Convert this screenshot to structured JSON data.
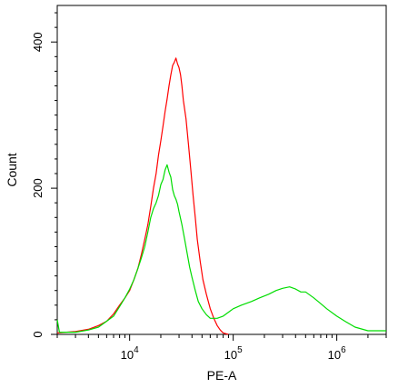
{
  "chart_data": {
    "type": "line",
    "title": "",
    "xlabel": "PE-A",
    "ylabel": "Count",
    "x_scale": "log",
    "xlim": [
      2000,
      3000000
    ],
    "ylim": [
      0,
      450
    ],
    "grid": false,
    "legend": "none",
    "x_ticks": [
      {
        "value": 10000,
        "base": "10",
        "exp": "4"
      },
      {
        "value": 100000,
        "base": "10",
        "exp": "5"
      },
      {
        "value": 1000000,
        "base": "10",
        "exp": "6"
      }
    ],
    "y_ticks": [
      {
        "value": 0,
        "label": "0"
      },
      {
        "value": 200,
        "label": "200"
      },
      {
        "value": 400,
        "label": "400"
      }
    ],
    "series": [
      {
        "color": "#ff0000",
        "points": [
          [
            2000,
            2
          ],
          [
            3000,
            4
          ],
          [
            4000,
            7
          ],
          [
            5000,
            12
          ],
          [
            6000,
            18
          ],
          [
            7000,
            28
          ],
          [
            8000,
            40
          ],
          [
            9000,
            50
          ],
          [
            10000,
            60
          ],
          [
            11000,
            75
          ],
          [
            12000,
            90
          ],
          [
            13000,
            110
          ],
          [
            14000,
            130
          ],
          [
            15000,
            150
          ],
          [
            16000,
            175
          ],
          [
            17000,
            200
          ],
          [
            18000,
            220
          ],
          [
            19000,
            245
          ],
          [
            20000,
            265
          ],
          [
            21000,
            285
          ],
          [
            22000,
            305
          ],
          [
            23000,
            322
          ],
          [
            24000,
            340
          ],
          [
            25000,
            355
          ],
          [
            26000,
            368
          ],
          [
            27000,
            372
          ],
          [
            28000,
            378
          ],
          [
            29000,
            370
          ],
          [
            30000,
            365
          ],
          [
            31000,
            355
          ],
          [
            32000,
            340
          ],
          [
            33000,
            320
          ],
          [
            35000,
            295
          ],
          [
            37000,
            260
          ],
          [
            39000,
            225
          ],
          [
            41000,
            190
          ],
          [
            43000,
            160
          ],
          [
            45000,
            130
          ],
          [
            48000,
            100
          ],
          [
            51000,
            75
          ],
          [
            55000,
            55
          ],
          [
            60000,
            35
          ],
          [
            65000,
            22
          ],
          [
            70000,
            12
          ],
          [
            75000,
            6
          ],
          [
            80000,
            2
          ],
          [
            90000,
            0
          ]
        ]
      },
      {
        "color": "#00dd00",
        "points": [
          [
            2000,
            20
          ],
          [
            2100,
            3
          ],
          [
            3000,
            3
          ],
          [
            4000,
            6
          ],
          [
            5000,
            10
          ],
          [
            6000,
            18
          ],
          [
            7000,
            25
          ],
          [
            8000,
            38
          ],
          [
            9000,
            50
          ],
          [
            10000,
            62
          ],
          [
            11000,
            75
          ],
          [
            12000,
            90
          ],
          [
            13000,
            105
          ],
          [
            14000,
            120
          ],
          [
            15000,
            140
          ],
          [
            16000,
            160
          ],
          [
            17000,
            172
          ],
          [
            18000,
            180
          ],
          [
            19000,
            190
          ],
          [
            20000,
            205
          ],
          [
            21000,
            212
          ],
          [
            22000,
            225
          ],
          [
            23000,
            232
          ],
          [
            24000,
            222
          ],
          [
            25000,
            215
          ],
          [
            26000,
            198
          ],
          [
            27000,
            190
          ],
          [
            28000,
            185
          ],
          [
            29000,
            178
          ],
          [
            30000,
            168
          ],
          [
            32000,
            150
          ],
          [
            34000,
            130
          ],
          [
            36000,
            110
          ],
          [
            38000,
            92
          ],
          [
            40000,
            78
          ],
          [
            43000,
            60
          ],
          [
            46000,
            45
          ],
          [
            50000,
            35
          ],
          [
            55000,
            27
          ],
          [
            60000,
            22
          ],
          [
            70000,
            22
          ],
          [
            80000,
            25
          ],
          [
            100000,
            35
          ],
          [
            120000,
            40
          ],
          [
            150000,
            45
          ],
          [
            180000,
            50
          ],
          [
            220000,
            55
          ],
          [
            260000,
            60
          ],
          [
            300000,
            63
          ],
          [
            350000,
            65
          ],
          [
            400000,
            62
          ],
          [
            450000,
            58
          ],
          [
            500000,
            58
          ],
          [
            600000,
            50
          ],
          [
            700000,
            42
          ],
          [
            800000,
            35
          ],
          [
            1000000,
            25
          ],
          [
            1200000,
            18
          ],
          [
            1500000,
            10
          ],
          [
            2000000,
            5
          ],
          [
            2500000,
            5
          ],
          [
            3000000,
            5
          ]
        ]
      }
    ]
  }
}
